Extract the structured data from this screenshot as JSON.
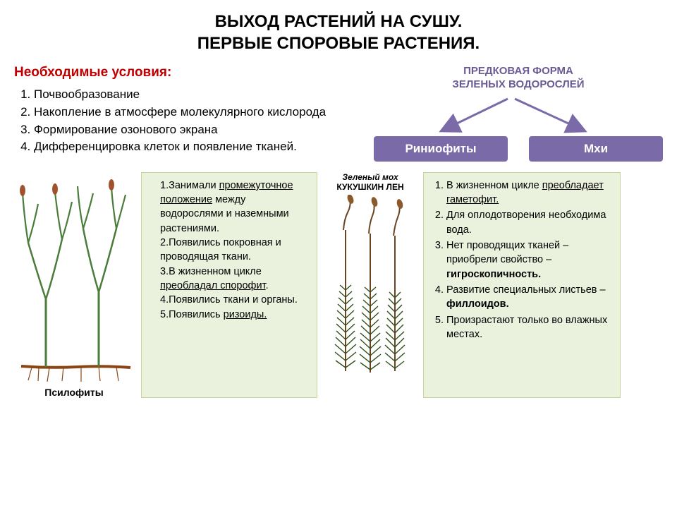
{
  "title": {
    "line1": "ВЫХОД РАСТЕНИЙ НА СУШУ.",
    "line2": "ПЕРВЫЕ СПОРОВЫЕ РАСТЕНИЯ."
  },
  "conditions": {
    "heading": "Необходимые условия:",
    "heading_color": "#c00000",
    "items": [
      "Почвообразование",
      "Накопление в атмосфере молекулярного кислорода",
      "Формирование озонового экрана",
      "Дифференцировка клеток и появление тканей."
    ]
  },
  "diagram": {
    "ancestral_line1": "ПРЕДКОВАЯ ФОРМА",
    "ancestral_line2": "ЗЕЛЕНЫХ ВОДОРОСЛЕЙ",
    "ancestral_color": "#6b5b95",
    "arrow_color": "#7a6ba8",
    "box_bg": "#7a6ba8",
    "box_text_color": "#ffffff",
    "left_box": "Риниофиты",
    "right_box": "Мхи"
  },
  "psilophytes": {
    "caption": "Псилофиты",
    "stem_color": "#4a7c3a",
    "tip_color": "#a0522d",
    "rhizoid_color": "#8b4513",
    "items": [
      {
        "n": "1.",
        "pre": "Занимали ",
        "u": "промежуточное положение",
        "post": " между водорослями и наземными растениями."
      },
      {
        "n": "2.",
        "pre": "Появились покровная и проводящая ткани.",
        "u": "",
        "post": ""
      },
      {
        "n": "3.",
        "pre": "В жизненном цикле ",
        "u": "преобладал спорофит",
        "post": "."
      },
      {
        "n": "4.",
        "pre": "Появились ткани и органы.",
        "u": "",
        "post": ""
      },
      {
        "n": "5.",
        "pre": "Появились ",
        "u": "ризоиды.",
        "post": ""
      }
    ]
  },
  "moss": {
    "title_line1": "Зеленый мох",
    "title_line2": "КУКУШКИН ЛЕН",
    "leaf_color": "#2d5016",
    "stem_color": "#6b4423",
    "capsule_color": "#8b5a2b",
    "items": [
      {
        "pre": "В жизненном цикле ",
        "u": "преобладает гаметофит.",
        "post": "",
        "bold": ""
      },
      {
        "pre": "Для оплодотворения необходима вода.",
        "u": "",
        "post": "",
        "bold": ""
      },
      {
        "pre": "Нет проводящих тканей – приобрели свойство – ",
        "u": "",
        "post": "",
        "bold": "гигроскопичность."
      },
      {
        "pre": "Развитие специальных листьев – ",
        "u": "",
        "post": "",
        "bold": "филлоидов."
      },
      {
        "pre": "Произрастают только во влажных местах.",
        "u": "",
        "post": "",
        "bold": ""
      }
    ]
  },
  "card_style": {
    "bg": "#eaf1dc",
    "border": "#c4d79b"
  }
}
